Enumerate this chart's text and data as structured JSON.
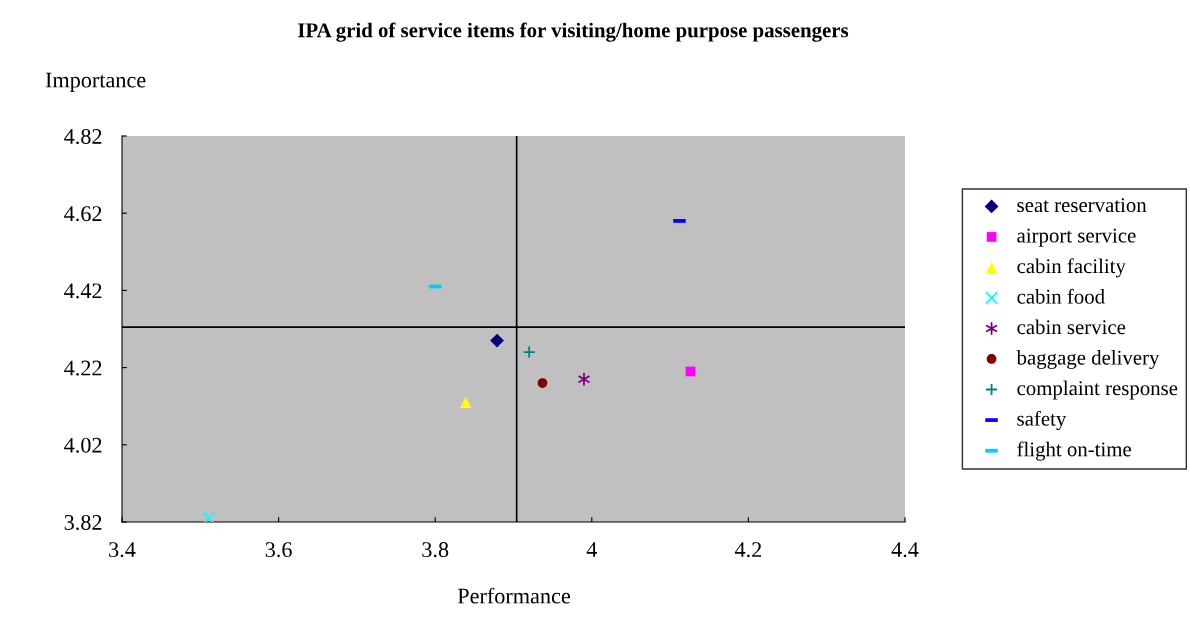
{
  "chart_data": {
    "type": "scatter",
    "title": "IPA grid of service items for visiting/home purpose passengers",
    "xlabel": "Performance",
    "ylabel": "Importance",
    "xlim": [
      3.4,
      4.4
    ],
    "xticks": [
      3.4,
      3.6,
      3.8,
      4,
      4.2,
      4.4
    ],
    "ylim": [
      3.82,
      4.82
    ],
    "yticks": [
      3.82,
      4.02,
      4.22,
      4.42,
      4.62,
      4.82
    ],
    "grid": false,
    "legend": "right",
    "series": [
      {
        "name": "seat reservation",
        "color": "#000080",
        "marker": "diamond",
        "x": [
          3.879
        ],
        "values": [
          4.29
        ]
      },
      {
        "name": "airport service",
        "color": "#ff00ff",
        "marker": "square",
        "x": [
          4.126
        ],
        "values": [
          4.21
        ]
      },
      {
        "name": "cabin facility",
        "color": "#ffff00",
        "marker": "triangle",
        "x": [
          3.839
        ],
        "values": [
          4.13
        ]
      },
      {
        "name": "cabin food",
        "color": "#00ffff",
        "marker": "cross",
        "x": [
          3.511
        ],
        "values": [
          3.83
        ]
      },
      {
        "name": "cabin service",
        "color": "#800080",
        "marker": "cross",
        "x": [
          3.99
        ],
        "values": [
          4.19
        ]
      },
      {
        "name": "baggage delivery",
        "color": "#800000",
        "marker": "circle",
        "x": [
          3.937
        ],
        "values": [
          4.18
        ]
      },
      {
        "name": "complaint response",
        "color": "#008080",
        "marker": "cross",
        "x": [
          3.92
        ],
        "values": [
          4.26
        ]
      },
      {
        "name": "safety",
        "color": "#0000ff",
        "x": [
          4.112
        ],
        "values": [
          4.6
        ]
      },
      {
        "name": "flight on-time",
        "color": "#00ccff",
        "x": [
          3.8
        ],
        "values": [
          4.43
        ]
      }
    ],
    "ref_lines": [
      {
        "axis": "x",
        "value": 3.904,
        "color": "#000000"
      },
      {
        "axis": "y",
        "value": 4.325,
        "color": "#000000"
      }
    ]
  }
}
